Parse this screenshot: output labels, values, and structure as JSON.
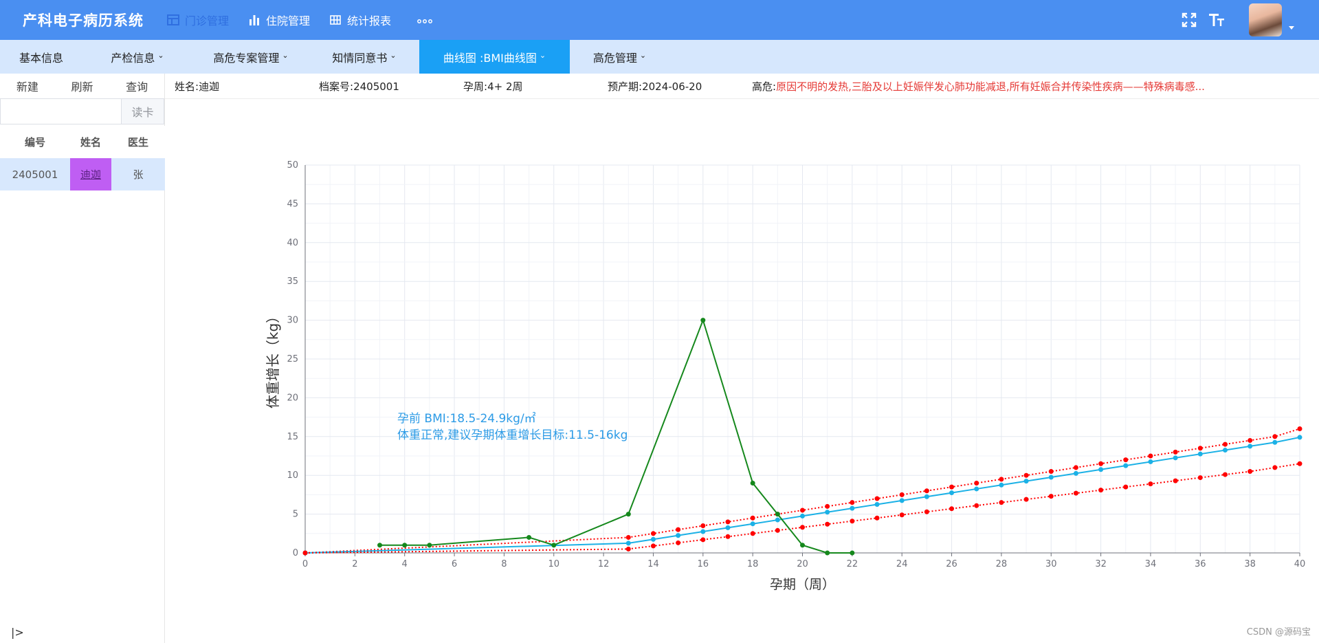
{
  "app": {
    "title": "产科电子病历系统",
    "top_nav": [
      {
        "label": "门诊管理",
        "icon": "table-icon",
        "active": true
      },
      {
        "label": "住院管理",
        "icon": "bar-chart-icon",
        "active": false
      },
      {
        "label": "统计报表",
        "icon": "grid-icon",
        "active": false
      }
    ],
    "more": "∘∘∘",
    "tools": [
      "fullscreen-icon",
      "font-size-icon"
    ]
  },
  "sub_nav": [
    {
      "label": "基本信息",
      "dropdown": false,
      "active": false
    },
    {
      "label": "产检信息",
      "dropdown": true,
      "active": false
    },
    {
      "label": "高危专案管理",
      "dropdown": true,
      "active": false
    },
    {
      "label": "知情同意书",
      "dropdown": true,
      "active": false
    },
    {
      "label": "曲线图 :BMI曲线图",
      "dropdown": true,
      "active": true
    },
    {
      "label": "高危管理",
      "dropdown": true,
      "active": false
    }
  ],
  "left_panel": {
    "actions": [
      "新建",
      "刷新",
      "查询"
    ],
    "search": {
      "value": "",
      "placeholder": "",
      "button": "读卡"
    },
    "columns": [
      "编号",
      "姓名",
      "医生"
    ],
    "rows": [
      {
        "id": "2405001",
        "name": "迪迦",
        "doctor": "张"
      }
    ],
    "collapse": "|>"
  },
  "patient": {
    "name_label": "姓名:",
    "name": "迪迦",
    "file_label": "档案号:",
    "file": "2405001",
    "week_label": "孕周:",
    "week": "4+ 2周",
    "due_label": "预产期:",
    "due": "2024-06-20",
    "risk_label": "高危:",
    "risk": "原因不明的发热,三胎及以上妊娠伴发心肺功能减退,所有妊娠合并传染性疾病——特殊病毒感..."
  },
  "chart_data": {
    "type": "line",
    "xlabel": "孕期（周）",
    "ylabel": "体重增长（kg）",
    "xlim": [
      0,
      40
    ],
    "ylim": [
      0,
      50
    ],
    "xticks": [
      0,
      2,
      4,
      6,
      8,
      10,
      12,
      14,
      16,
      18,
      20,
      22,
      24,
      26,
      28,
      30,
      32,
      34,
      36,
      38,
      40
    ],
    "yticks": [
      0,
      5,
      10,
      15,
      20,
      25,
      30,
      35,
      40,
      45,
      50
    ],
    "grid": true,
    "annotation": [
      "孕前 BMI:18.5-24.9kg/㎡",
      "体重正常,建议孕期体重增长目标:11.5-16kg"
    ],
    "series": [
      {
        "role": "upper",
        "color": "#ff0000",
        "dashed": true,
        "x": [
          0,
          13,
          14,
          15,
          16,
          17,
          18,
          19,
          20,
          21,
          22,
          23,
          24,
          25,
          26,
          27,
          28,
          29,
          30,
          31,
          32,
          33,
          34,
          35,
          36,
          37,
          38,
          39,
          40
        ],
        "y": [
          0,
          2,
          2.5,
          3,
          3.5,
          4,
          4.5,
          5,
          5.5,
          6,
          6.5,
          7,
          7.5,
          8,
          8.5,
          9,
          9.5,
          10,
          10.5,
          11,
          11.5,
          12,
          12.5,
          13,
          13.5,
          14,
          14.5,
          15,
          16
        ]
      },
      {
        "role": "middle",
        "color": "#1bb1e6",
        "dashed": false,
        "x": [
          0,
          13,
          14,
          15,
          16,
          17,
          18,
          19,
          20,
          21,
          22,
          23,
          24,
          25,
          26,
          27,
          28,
          29,
          30,
          31,
          32,
          33,
          34,
          35,
          36,
          37,
          38,
          39,
          40
        ],
        "y": [
          0,
          1.25,
          1.75,
          2.25,
          2.75,
          3.25,
          3.75,
          4.25,
          4.75,
          5.25,
          5.75,
          6.25,
          6.75,
          7.25,
          7.75,
          8.25,
          8.75,
          9.25,
          9.75,
          10.25,
          10.75,
          11.25,
          11.75,
          12.25,
          12.75,
          13.25,
          13.75,
          14.25,
          14.9
        ]
      },
      {
        "role": "lower",
        "color": "#ff0000",
        "dashed": true,
        "x": [
          0,
          13,
          14,
          15,
          16,
          17,
          18,
          19,
          20,
          21,
          22,
          23,
          24,
          25,
          26,
          27,
          28,
          29,
          30,
          31,
          32,
          33,
          34,
          35,
          36,
          37,
          38,
          39,
          40
        ],
        "y": [
          0,
          0.5,
          0.9,
          1.3,
          1.7,
          2.1,
          2.5,
          2.9,
          3.3,
          3.7,
          4.1,
          4.5,
          4.9,
          5.3,
          5.7,
          6.1,
          6.5,
          6.9,
          7.3,
          7.7,
          8.1,
          8.5,
          8.9,
          9.3,
          9.7,
          10.1,
          10.5,
          11,
          11.5
        ]
      },
      {
        "role": "measured",
        "color": "#15881c",
        "dashed": false,
        "x": [
          3,
          4,
          5,
          9,
          10,
          13,
          16,
          18,
          19,
          20,
          21,
          22
        ],
        "y": [
          1,
          1,
          1,
          2,
          1,
          5,
          30,
          9,
          5,
          1,
          0,
          0
        ]
      }
    ]
  },
  "watermark": "CSDN @源码宝"
}
